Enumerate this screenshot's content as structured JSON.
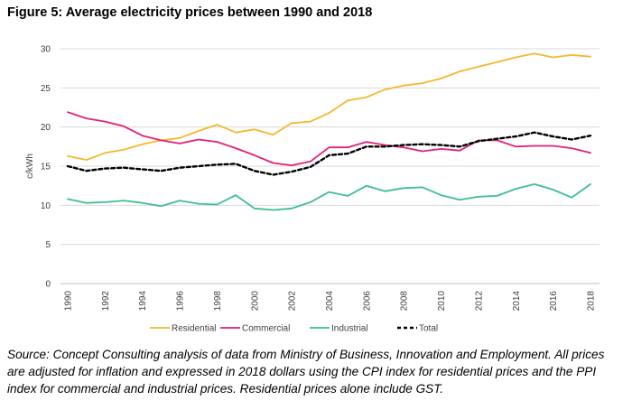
{
  "title": "Figure 5: Average electricity prices between 1990 and 2018",
  "source_note": "Source: Concept Consulting analysis of data from Ministry of Business, Innovation and Employment. All prices are adjusted for inflation and expressed in 2018 dollars using the CPI index for residential prices and the PPI index for commercial and industrial prices. Residential prices alone include GST.",
  "chart_data": {
    "type": "line",
    "title": "Figure 5: Average electricity prices between 1990 and 2018",
    "xlabel": "",
    "ylabel": "c/kWh",
    "ylim": [
      0,
      30
    ],
    "yticks": [
      0,
      5,
      10,
      15,
      20,
      25,
      30
    ],
    "x": [
      1990,
      1991,
      1992,
      1993,
      1994,
      1995,
      1996,
      1997,
      1998,
      1999,
      2000,
      2001,
      2002,
      2003,
      2004,
      2005,
      2006,
      2007,
      2008,
      2009,
      2010,
      2011,
      2012,
      2013,
      2014,
      2015,
      2016,
      2017,
      2018
    ],
    "xtick_labels": [
      "1990",
      "1992",
      "1994",
      "1996",
      "1998",
      "2000",
      "2002",
      "2004",
      "2006",
      "2008",
      "2010",
      "2012",
      "2014",
      "2016",
      "2018"
    ],
    "grid": "horizontal",
    "legend_position": "bottom",
    "series": [
      {
        "name": "Residential",
        "color": "#f5b82e",
        "dash": "solid",
        "values": [
          16.3,
          15.8,
          16.7,
          17.1,
          17.8,
          18.3,
          18.6,
          19.5,
          20.3,
          19.3,
          19.7,
          19.0,
          20.5,
          20.7,
          21.8,
          23.4,
          23.8,
          24.8,
          25.3,
          25.6,
          26.2,
          27.1,
          27.7,
          28.3,
          28.9,
          29.4,
          28.9,
          29.2,
          29.0
        ]
      },
      {
        "name": "Commercial",
        "color": "#e21f7a",
        "dash": "solid",
        "values": [
          21.9,
          21.1,
          20.7,
          20.1,
          18.9,
          18.3,
          17.9,
          18.4,
          18.1,
          17.3,
          16.4,
          15.4,
          15.1,
          15.6,
          17.4,
          17.4,
          18.1,
          17.7,
          17.4,
          16.9,
          17.2,
          17.0,
          18.3,
          18.3,
          17.5,
          17.6,
          17.6,
          17.3,
          16.7
        ]
      },
      {
        "name": "Industrial",
        "color": "#3fbd98",
        "dash": "solid",
        "values": [
          10.8,
          10.3,
          10.4,
          10.6,
          10.3,
          9.9,
          10.6,
          10.2,
          10.1,
          11.3,
          9.6,
          9.4,
          9.6,
          10.4,
          11.7,
          11.2,
          12.5,
          11.8,
          12.2,
          12.3,
          11.3,
          10.7,
          11.1,
          11.2,
          12.1,
          12.7,
          12.0,
          11.0,
          12.7
        ]
      },
      {
        "name": "Total",
        "color": "#000000",
        "dash": "dashed",
        "values": [
          15.0,
          14.4,
          14.7,
          14.8,
          14.6,
          14.4,
          14.8,
          15.0,
          15.2,
          15.3,
          14.4,
          13.9,
          14.3,
          14.9,
          16.4,
          16.6,
          17.5,
          17.5,
          17.7,
          17.8,
          17.7,
          17.5,
          18.2,
          18.5,
          18.8,
          19.3,
          18.8,
          18.4,
          18.9
        ]
      }
    ]
  }
}
